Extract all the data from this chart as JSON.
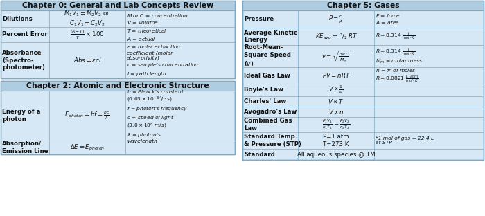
{
  "bg_color": "#d6e8f5",
  "header_bg": "#b0cce0",
  "border_color": "#7aaac8",
  "white": "#ffffff",
  "ch0_title": "Chapter 0: General and Lab Concepts Review",
  "ch0_rows": [
    {
      "label": "Dilutions",
      "formula": "$M_1V_1 = M_2V_2$ or\n$C_1V_1 = C_2V_2$",
      "notes": "$M$ or $C$ = concentration\n$V$ = volume"
    },
    {
      "label": "Percent Error",
      "formula": "$\\frac{(A - T)}{T} \\times 100$",
      "notes": "$T$ = theoretical\n$A$ = actual"
    },
    {
      "label": "Absorbance\n(Spectro-\nphotometer)",
      "formula": "$Abs = \\varepsilon cl$",
      "notes": "$\\varepsilon$ = molar extinction\ncoefficient (molar\nabsorptivity)\n$c$ = sample's concentration\n$l$ = path length"
    }
  ],
  "ch2_title": "Chapter 2: Atomic and Electronic Structure",
  "ch2_rows": [
    {
      "label": "Energy of a\nphoton",
      "formula": "$E_{photon} = hf = \\frac{hc}{\\lambda}$",
      "notes": "$h$ = Planck's constant\n$(6.63 \\times 10^{-34}J\\cdot s)$\n$f$ = photon's frequency\n$c$ = speed of light\n$(3.0 \\times 10^{8}$ m$/s)$\n$\\lambda$ = photon's\nwavelength"
    },
    {
      "label": "Absorption/\nEmission Line",
      "formula": "$\\Delta E = E_{photon}$",
      "notes": ""
    }
  ],
  "ch5_title": "Chapter 5: Gases",
  "ch5_rows": [
    {
      "label": "Pressure",
      "formula": "$P = \\frac{F}{A}$",
      "notes": "$F$ = force\n$A$ = area"
    },
    {
      "label": "Average Kinetic\nEnergy",
      "formula": "$KE_{avg} = \\,^{3}/_{2}\\,RT$",
      "notes": "$R = 8.314\\ \\frac{J}{mol \\cdot K}$"
    },
    {
      "label": "Root-Mean-\nSquare Speed\n($v$)",
      "formula": "$v = \\sqrt{\\frac{3RT}{M_m}}$",
      "notes": "$R = 8.314\\ \\frac{J}{mol \\cdot K}$\n$M_m$ = molar mass"
    },
    {
      "label": "Ideal Gas Law",
      "formula": "$PV = nRT$",
      "notes": "$n$ = # of moles\n$R = 0.0821\\ \\frac{L \\cdot atm}{mol \\cdot K}$"
    },
    {
      "label": "Boyle's Law",
      "formula": "$V \\propto \\frac{1}{P}$",
      "notes": ""
    },
    {
      "label": "Charles' Law",
      "formula": "$V \\propto T$",
      "notes": ""
    },
    {
      "label": "Avogadro's Law",
      "formula": "$V \\propto n$",
      "notes": ""
    },
    {
      "label": "Combined Gas\nLaw",
      "formula": "$\\frac{P_1V_1}{n_1T_1} = \\frac{P_2V_2}{n_2T_2}$",
      "notes": ""
    },
    {
      "label": "Standard Temp.\n& Pressure (STP)",
      "formula": "P=1 atm\nT=273 K",
      "notes": "*1 mol of gas = 22.4 L\nat STP"
    },
    {
      "label": "Standard",
      "formula": "All aqueous species @ 1M",
      "notes": ""
    }
  ]
}
